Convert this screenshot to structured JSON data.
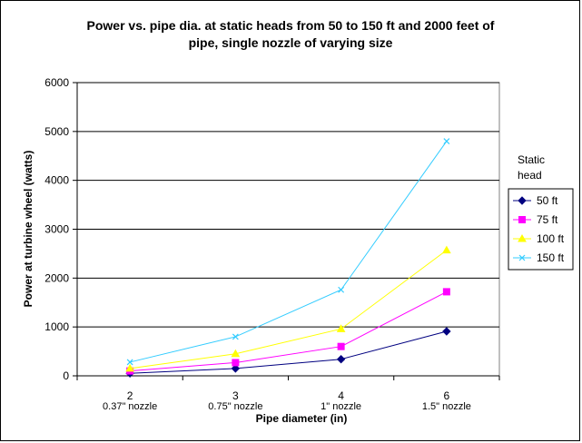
{
  "chart_data": {
    "type": "line",
    "title_lines": [
      "Power vs. pipe dia. at static heads from 50 to 150 ft and 2000 feet of",
      "pipe, single nozzle of varying size"
    ],
    "xlabel": "Pipe diameter (in)",
    "ylabel": "Power at turbine wheel (watts)",
    "categories": [
      "2",
      "3",
      "4",
      "6"
    ],
    "nozzle_labels": [
      "0.37\" nozzle",
      "0.75\" nozzle",
      "1\" nozzle",
      "1.5\" nozzle"
    ],
    "ylim": [
      0,
      6000
    ],
    "yticks": [
      0,
      1000,
      2000,
      3000,
      4000,
      5000,
      6000
    ],
    "grid": true,
    "legend_title_lines": [
      "Static",
      "head"
    ],
    "legend_position": "right",
    "series": [
      {
        "name": "50 ft",
        "values": [
          50,
          150,
          340,
          910
        ],
        "color": "#000080",
        "marker": "diamond"
      },
      {
        "name": "75 ft",
        "values": [
          100,
          270,
          600,
          1720
        ],
        "color": "#ff00ff",
        "marker": "square"
      },
      {
        "name": "100 ft",
        "values": [
          150,
          450,
          960,
          2570
        ],
        "color": "#ffff00",
        "marker": "triangle"
      },
      {
        "name": "150 ft",
        "values": [
          280,
          800,
          1760,
          4800
        ],
        "color": "#33ccff",
        "marker": "x"
      }
    ]
  }
}
